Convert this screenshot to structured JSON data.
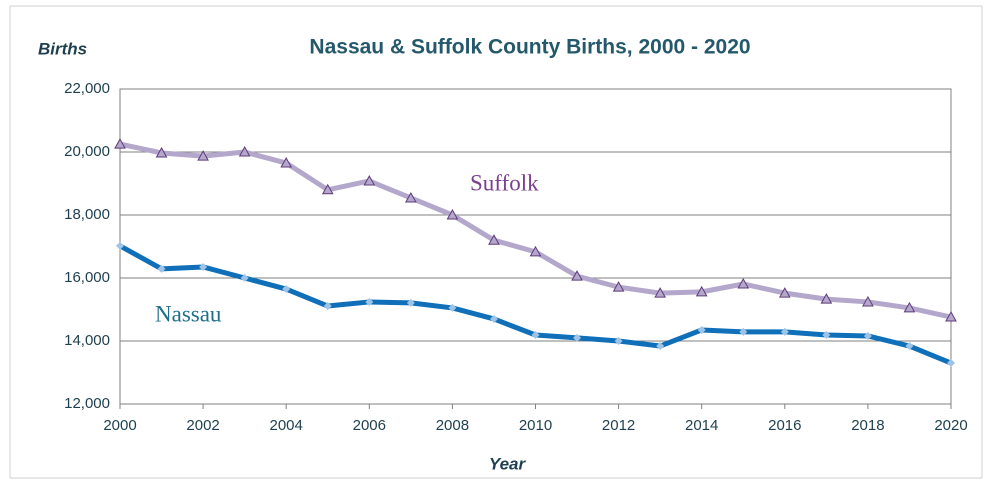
{
  "chart_data": {
    "type": "line",
    "title": "Nassau & Suffolk County Births, 2000 - 2020",
    "y_label": "Births",
    "x_label": "Year",
    "x": [
      2000,
      2001,
      2002,
      2003,
      2004,
      2005,
      2006,
      2007,
      2008,
      2009,
      2010,
      2011,
      2012,
      2013,
      2014,
      2015,
      2016,
      2017,
      2018,
      2019,
      2020
    ],
    "series": [
      {
        "name": "Suffolk",
        "color": "#b4a7cc",
        "marker": "triangle",
        "marker_color": "#5e3a78",
        "label_color": "#7b3f8f",
        "values": [
          20250,
          19970,
          19870,
          20000,
          19650,
          18800,
          19080,
          18540,
          18000,
          17200,
          16830,
          16060,
          15710,
          15520,
          15560,
          15810,
          15520,
          15330,
          15240,
          15050,
          14760
        ]
      },
      {
        "name": "Nassau",
        "color": "#0f6fb8",
        "marker": "diamond",
        "marker_color": "#9dc3e6",
        "label_color": "#1f6f8b",
        "values": [
          17020,
          16290,
          16350,
          16000,
          15650,
          15110,
          15240,
          15210,
          15050,
          14700,
          14190,
          14100,
          14000,
          13840,
          14350,
          14290,
          14290,
          14190,
          14160,
          13840,
          13300
        ]
      }
    ],
    "xlim": [
      2000,
      2020
    ],
    "xticks": [
      2000,
      2002,
      2004,
      2006,
      2008,
      2010,
      2012,
      2014,
      2016,
      2018,
      2020
    ],
    "ylim": [
      12000,
      22000
    ],
    "yticks": [
      {
        "value": 12000,
        "label": "12,000"
      },
      {
        "value": 14000,
        "label": "14,000"
      },
      {
        "value": 16000,
        "label": "16,000"
      },
      {
        "value": 18000,
        "label": "18,000"
      },
      {
        "value": 20000,
        "label": "20,000"
      },
      {
        "value": 22000,
        "label": "22,000"
      }
    ],
    "grid": true
  }
}
